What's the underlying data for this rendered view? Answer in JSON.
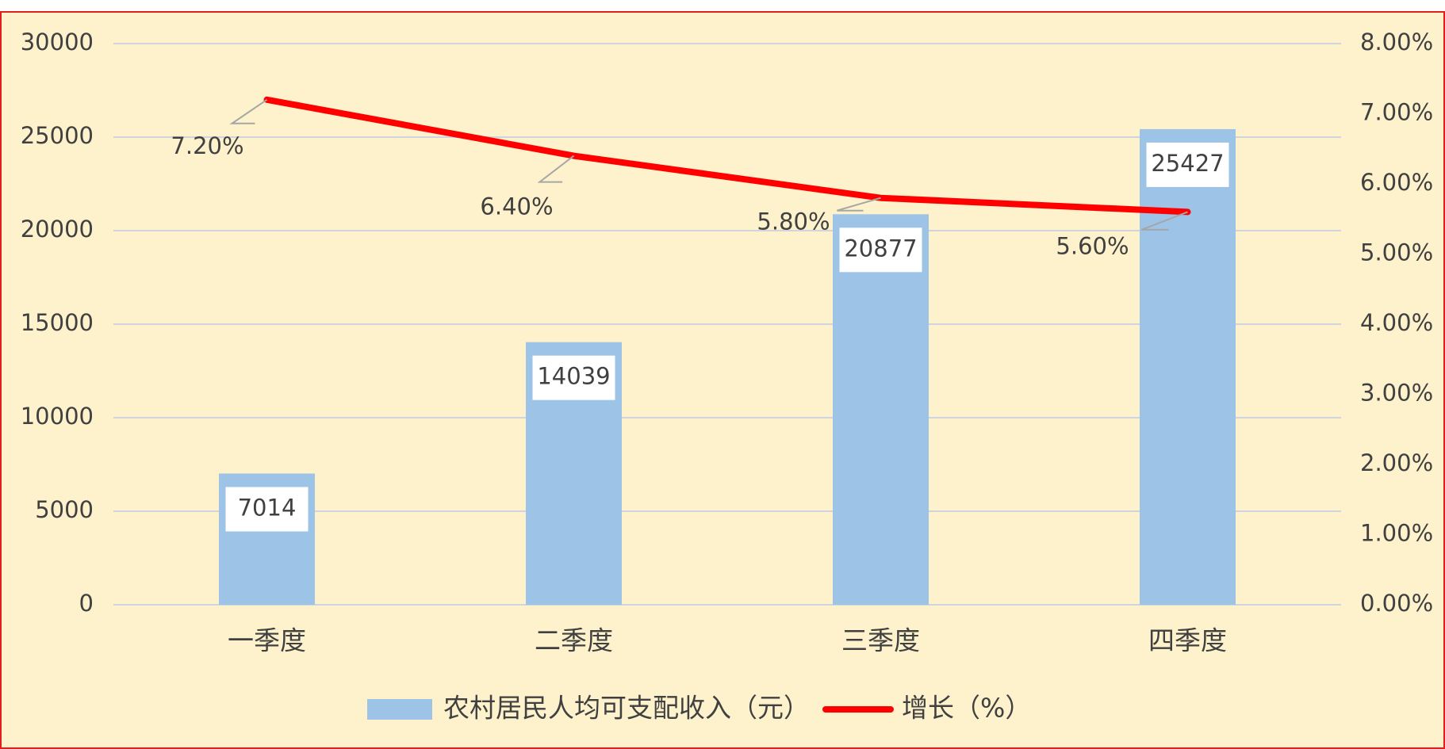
{
  "chart_data": {
    "type": "bar",
    "categories": [
      "一季度",
      "二季度",
      "三季度",
      "四季度"
    ],
    "series": [
      {
        "name": "农村居民人均可支配收入（元）",
        "type": "bar",
        "color": "#9dc3e6",
        "values": [
          7014,
          14039,
          20877,
          25427
        ]
      },
      {
        "name": "增长（%）",
        "type": "line",
        "axis": "y2",
        "color": "#ff0000",
        "values": [
          7.2,
          6.4,
          5.8,
          5.6
        ],
        "value_labels": [
          "7.20%",
          "6.40%",
          "5.80%",
          "5.60%"
        ]
      }
    ],
    "ylim": [
      0,
      30000
    ],
    "yticks": [
      0,
      5000,
      10000,
      15000,
      20000,
      25000,
      30000
    ],
    "y2lim": [
      0,
      8
    ],
    "y2ticks": [
      {
        "value": 0,
        "label": "0.00%"
      },
      {
        "value": 1,
        "label": "1.00%"
      },
      {
        "value": 2,
        "label": "2.00%"
      },
      {
        "value": 3,
        "label": "3.00%"
      },
      {
        "value": 4,
        "label": "4.00%"
      },
      {
        "value": 5,
        "label": "5.00%"
      },
      {
        "value": 6,
        "label": "6.00%"
      },
      {
        "value": 7,
        "label": "7.00%"
      },
      {
        "value": 8,
        "label": "8.00%"
      }
    ],
    "grid": true,
    "legend": "bottom"
  }
}
